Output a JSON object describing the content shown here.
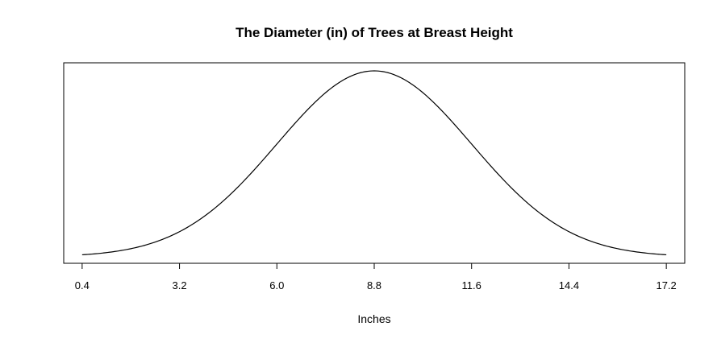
{
  "chart_data": {
    "type": "line",
    "title": "The Diameter (in) of Trees at Breast Height",
    "xlabel": "Inches",
    "ylabel": "",
    "xlim": [
      -0.13,
      17.73
    ],
    "x_ticks": [
      0.4,
      3.2,
      6.0,
      8.8,
      11.6,
      14.4,
      17.2
    ],
    "x_tick_labels": [
      "0.4",
      "3.2",
      "6.0",
      "8.8",
      "11.6",
      "14.4",
      "17.2"
    ],
    "y_axis_shown": false,
    "grid": false,
    "series": [
      {
        "distribution": "normal",
        "mean": 8.8,
        "sd": 2.8,
        "x_range": [
          0.4,
          17.2
        ],
        "color": "#000000"
      }
    ]
  }
}
